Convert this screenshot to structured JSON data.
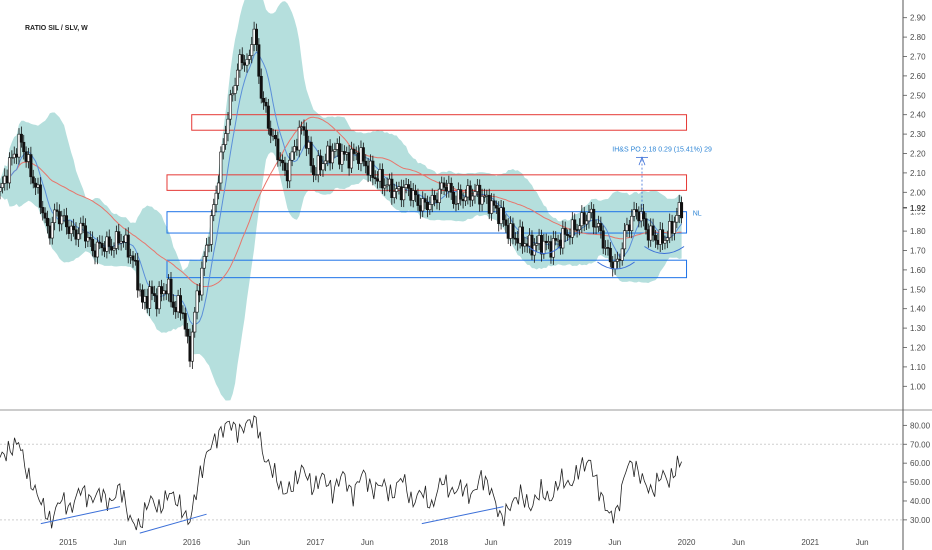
{
  "header": {
    "title": "RATIO SIL / SLV, W"
  },
  "chart_data": [
    {
      "type": "candlestick",
      "title": "RATIO SIL / SLV, W",
      "ylim": [
        0.95,
        2.95
      ],
      "y_ticks": [
        "2.90",
        "2.80",
        "2.70",
        "2.60",
        "2.50",
        "2.40",
        "2.30",
        "2.20",
        "2.10",
        "2.00",
        "1.90",
        "1.80",
        "1.70",
        "1.60",
        "1.50",
        "1.40",
        "1.30",
        "1.20",
        "1.10",
        "1.00"
      ],
      "last_price": "1.92",
      "last_price_value": 1.92,
      "x_ticks": [
        "2015",
        "Jun",
        "2016",
        "Jun",
        "2017",
        "Jun",
        "2018",
        "Jun",
        "2019",
        "Jun",
        "2020",
        "Jun",
        "2021",
        "Jun"
      ],
      "x_tick_years": [
        2015.0,
        2015.42,
        2016.0,
        2016.42,
        2017.0,
        2017.42,
        2018.0,
        2018.42,
        2019.0,
        2019.42,
        2020.0,
        2020.42,
        2021.0,
        2021.42
      ],
      "price_path": [
        [
          2014.45,
          2.0
        ],
        [
          2014.55,
          2.18
        ],
        [
          2014.62,
          2.27
        ],
        [
          2014.7,
          2.1
        ],
        [
          2014.78,
          1.95
        ],
        [
          2014.84,
          1.78
        ],
        [
          2014.9,
          1.9
        ],
        [
          2014.97,
          1.85
        ],
        [
          2015.05,
          1.78
        ],
        [
          2015.12,
          1.82
        ],
        [
          2015.2,
          1.7
        ],
        [
          2015.28,
          1.73
        ],
        [
          2015.36,
          1.72
        ],
        [
          2015.42,
          1.77
        ],
        [
          2015.48,
          1.72
        ],
        [
          2015.55,
          1.6
        ],
        [
          2015.6,
          1.42
        ],
        [
          2015.66,
          1.48
        ],
        [
          2015.72,
          1.45
        ],
        [
          2015.8,
          1.52
        ],
        [
          2015.86,
          1.4
        ],
        [
          2015.92,
          1.42
        ],
        [
          2015.98,
          1.15
        ],
        [
          2016.04,
          1.45
        ],
        [
          2016.1,
          1.65
        ],
        [
          2016.16,
          1.85
        ],
        [
          2016.22,
          2.1
        ],
        [
          2016.28,
          2.35
        ],
        [
          2016.34,
          2.55
        ],
        [
          2016.4,
          2.7
        ],
        [
          2016.46,
          2.65
        ],
        [
          2016.5,
          2.88
        ],
        [
          2016.55,
          2.55
        ],
        [
          2016.62,
          2.35
        ],
        [
          2016.7,
          2.2
        ],
        [
          2016.76,
          2.08
        ],
        [
          2016.84,
          2.25
        ],
        [
          2016.9,
          2.35
        ],
        [
          2016.98,
          2.1
        ],
        [
          2017.05,
          2.15
        ],
        [
          2017.15,
          2.22
        ],
        [
          2017.25,
          2.18
        ],
        [
          2017.35,
          2.2
        ],
        [
          2017.45,
          2.1
        ],
        [
          2017.55,
          2.05
        ],
        [
          2017.65,
          2.0
        ],
        [
          2017.75,
          2.02
        ],
        [
          2017.85,
          1.93
        ],
        [
          2017.95,
          1.95
        ],
        [
          2018.05,
          2.05
        ],
        [
          2018.12,
          1.96
        ],
        [
          2018.2,
          1.98
        ],
        [
          2018.3,
          2.0
        ],
        [
          2018.4,
          1.95
        ],
        [
          2018.5,
          1.88
        ],
        [
          2018.58,
          1.78
        ],
        [
          2018.66,
          1.76
        ],
        [
          2018.74,
          1.72
        ],
        [
          2018.82,
          1.74
        ],
        [
          2018.9,
          1.72
        ],
        [
          2018.98,
          1.76
        ],
        [
          2019.06,
          1.8
        ],
        [
          2019.14,
          1.84
        ],
        [
          2019.22,
          1.89
        ],
        [
          2019.3,
          1.8
        ],
        [
          2019.38,
          1.65
        ],
        [
          2019.44,
          1.62
        ],
        [
          2019.5,
          1.78
        ],
        [
          2019.56,
          1.88
        ],
        [
          2019.62,
          1.9
        ],
        [
          2019.68,
          1.8
        ],
        [
          2019.74,
          1.77
        ],
        [
          2019.8,
          1.75
        ],
        [
          2019.86,
          1.79
        ],
        [
          2019.92,
          1.88
        ],
        [
          2019.96,
          1.92
        ]
      ],
      "zones": [
        {
          "kind": "resistance",
          "color": "#e53935",
          "x_from": 2016.0,
          "x_to": 2020.0,
          "y_top": 2.4,
          "y_bottom": 2.32
        },
        {
          "kind": "resistance",
          "color": "#e53935",
          "x_from": 2015.8,
          "x_to": 2020.0,
          "y_top": 2.09,
          "y_bottom": 2.01
        },
        {
          "kind": "support",
          "color": "#1e73e8",
          "x_from": 2015.8,
          "x_to": 2020.0,
          "y_top": 1.9,
          "y_bottom": 1.79
        },
        {
          "kind": "support",
          "color": "#1e73e8",
          "x_from": 2015.8,
          "x_to": 2020.0,
          "y_top": 1.65,
          "y_bottom": 1.56
        }
      ],
      "annotations": [
        {
          "text": "IH&S PO 2.18  0.29 (15.41%) 29",
          "x": 2019.4,
          "y": 2.21
        },
        {
          "text": "NL",
          "x": 2020.05,
          "y": 1.88
        }
      ]
    },
    {
      "type": "line",
      "title": "",
      "ylim": [
        22,
        86
      ],
      "y_ticks": [
        "80.00",
        "70.00",
        "60.00",
        "50.00",
        "40.00",
        "30.00"
      ],
      "reference_lines": [
        70,
        30
      ],
      "path": [
        [
          2014.45,
          63
        ],
        [
          2014.55,
          68
        ],
        [
          2014.6,
          72
        ],
        [
          2014.68,
          52
        ],
        [
          2014.78,
          40
        ],
        [
          2014.86,
          28
        ],
        [
          2014.94,
          42
        ],
        [
          2015.02,
          35
        ],
        [
          2015.1,
          47
        ],
        [
          2015.18,
          40
        ],
        [
          2015.26,
          45
        ],
        [
          2015.34,
          38
        ],
        [
          2015.42,
          48
        ],
        [
          2015.5,
          30
        ],
        [
          2015.58,
          26
        ],
        [
          2015.66,
          42
        ],
        [
          2015.74,
          35
        ],
        [
          2015.82,
          45
        ],
        [
          2015.9,
          38
        ],
        [
          2015.98,
          28
        ],
        [
          2016.06,
          52
        ],
        [
          2016.14,
          68
        ],
        [
          2016.22,
          75
        ],
        [
          2016.3,
          82
        ],
        [
          2016.38,
          76
        ],
        [
          2016.46,
          82
        ],
        [
          2016.52,
          84
        ],
        [
          2016.58,
          63
        ],
        [
          2016.66,
          56
        ],
        [
          2016.74,
          44
        ],
        [
          2016.82,
          48
        ],
        [
          2016.9,
          58
        ],
        [
          2016.98,
          46
        ],
        [
          2017.06,
          54
        ],
        [
          2017.14,
          44
        ],
        [
          2017.22,
          55
        ],
        [
          2017.3,
          42
        ],
        [
          2017.38,
          56
        ],
        [
          2017.46,
          45
        ],
        [
          2017.54,
          50
        ],
        [
          2017.62,
          42
        ],
        [
          2017.7,
          54
        ],
        [
          2017.78,
          38
        ],
        [
          2017.86,
          46
        ],
        [
          2017.94,
          36
        ],
        [
          2018.02,
          52
        ],
        [
          2018.1,
          44
        ],
        [
          2018.18,
          48
        ],
        [
          2018.26,
          42
        ],
        [
          2018.34,
          53
        ],
        [
          2018.42,
          46
        ],
        [
          2018.5,
          30
        ],
        [
          2018.58,
          38
        ],
        [
          2018.66,
          44
        ],
        [
          2018.74,
          36
        ],
        [
          2018.82,
          46
        ],
        [
          2018.9,
          40
        ],
        [
          2018.98,
          52
        ],
        [
          2019.06,
          48
        ],
        [
          2019.14,
          58
        ],
        [
          2019.22,
          61
        ],
        [
          2019.3,
          44
        ],
        [
          2019.38,
          32
        ],
        [
          2019.44,
          34
        ],
        [
          2019.52,
          60
        ],
        [
          2019.58,
          58
        ],
        [
          2019.64,
          52
        ],
        [
          2019.72,
          44
        ],
        [
          2019.8,
          55
        ],
        [
          2019.86,
          50
        ],
        [
          2019.92,
          58
        ],
        [
          2019.96,
          62
        ]
      ]
    }
  ],
  "colors": {
    "candle": "#111111",
    "bollinger_fill": "#a3d7d4",
    "fast_ma": "#5b8fd9",
    "slow_ma": "#e8756b",
    "trendline": "#3b6fd8",
    "rsi_line": "#222222"
  }
}
